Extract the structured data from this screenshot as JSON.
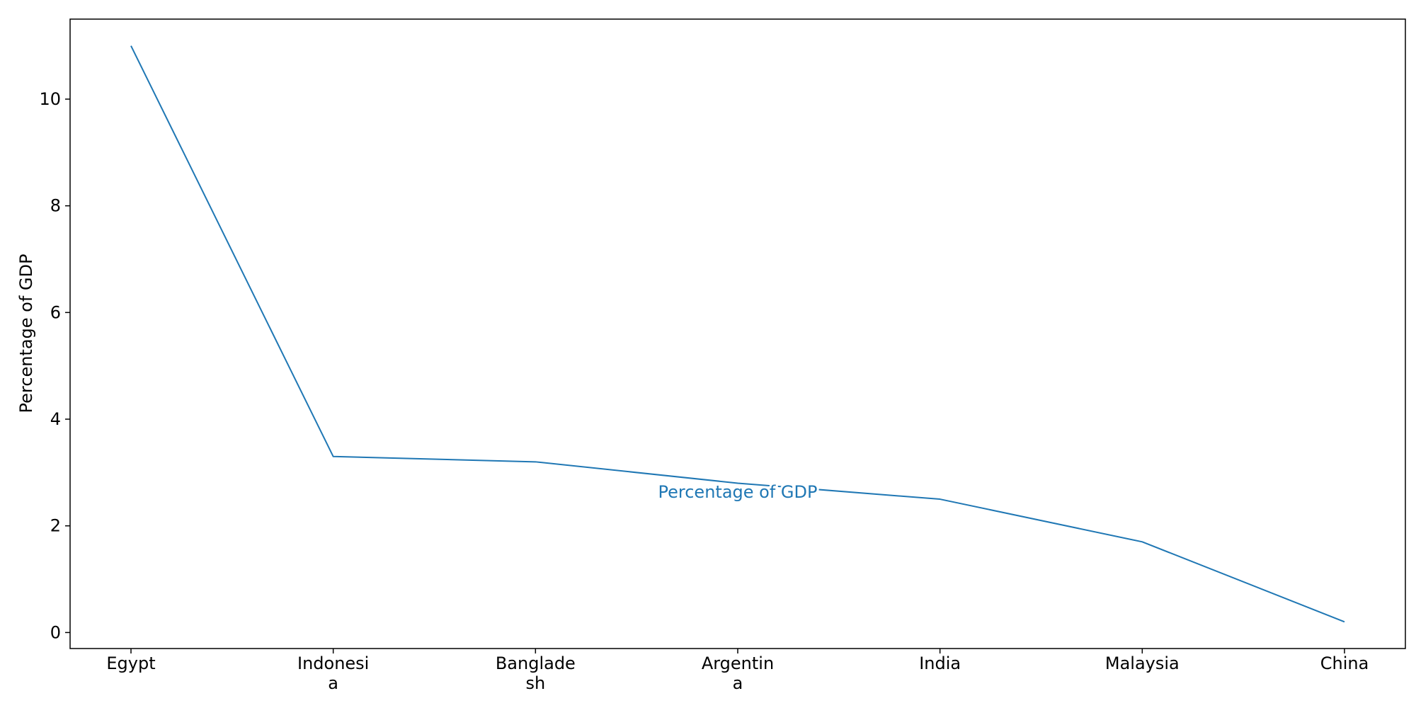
{
  "chart_data": {
    "type": "line",
    "categories": [
      [
        "Egypt"
      ],
      [
        "Indonesi",
        "a"
      ],
      [
        "Banglade",
        "sh"
      ],
      [
        "Argentin",
        "a"
      ],
      [
        "India"
      ],
      [
        "Malaysia"
      ],
      [
        "China"
      ]
    ],
    "series": [
      {
        "name": "Percentage of GDP",
        "values": [
          11.0,
          3.3,
          3.2,
          2.8,
          2.5,
          1.7,
          0.2
        ],
        "color": "#1f77b4"
      }
    ],
    "title": "",
    "xlabel": "",
    "ylabel": "Percentage of GDP",
    "ylim": [
      -0.3,
      11.5
    ],
    "yticks": [
      0,
      2,
      4,
      6,
      8,
      10
    ],
    "grid": false,
    "legend": "none"
  }
}
